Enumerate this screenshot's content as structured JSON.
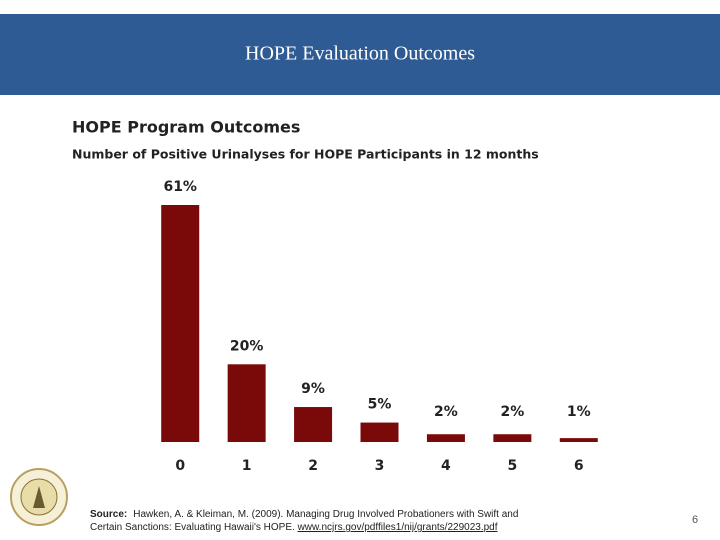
{
  "header": {
    "title": "HOPE Evaluation Outcomes"
  },
  "chart_data": {
    "type": "bar",
    "title": "HOPE Program Outcomes",
    "subtitle": "Number of Positive Urinalyses for HOPE Participants in 12 months",
    "categories": [
      "0",
      "1",
      "2",
      "3",
      "4",
      "5",
      "6"
    ],
    "values": [
      61,
      20,
      9,
      5,
      2,
      2,
      1
    ],
    "value_labels": [
      "61%",
      "20%",
      "9%",
      "5%",
      "2%",
      "2%",
      "1%"
    ],
    "color": "#7a0a0a"
  },
  "footer": {
    "source_label": "Source:",
    "source_line1": "Hawken, A. & Kleiman, M. (2009). Managing Drug Involved Probationers with Swift and",
    "source_line2_text": "Certain Sanctions: Evaluating Hawaii's HOPE. ",
    "source_link": "www.ncjrs.gov/pdffiles1/nij/grants/229023.pdf",
    "page_number": "6"
  }
}
